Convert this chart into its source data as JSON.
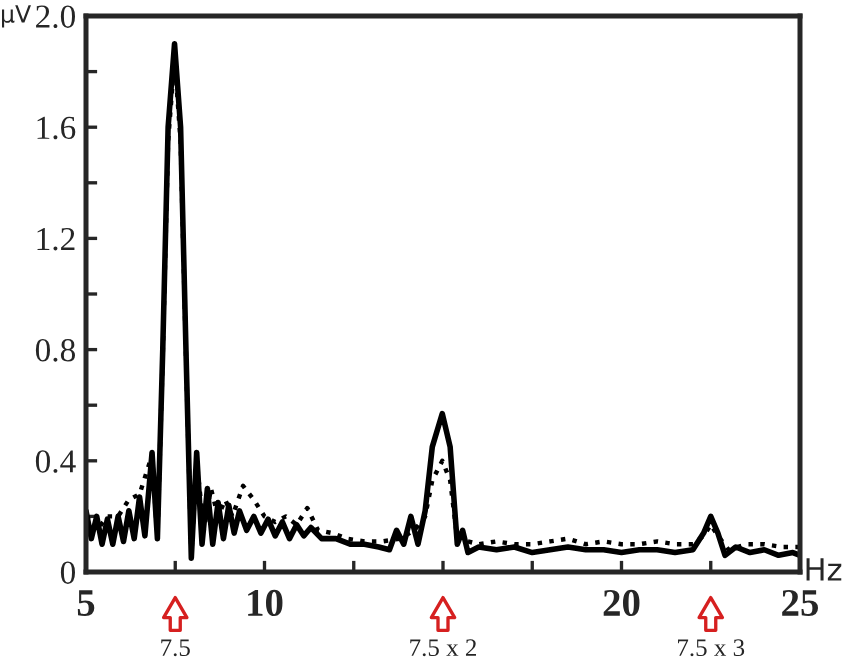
{
  "chart_data": {
    "type": "line",
    "ylabel": "μV",
    "xlabel": "Hz",
    "xlim": [
      5,
      25
    ],
    "xticks": [
      5,
      {
        "value": 7.5,
        "label": null
      },
      10,
      {
        "value": 12.5,
        "label": null
      },
      {
        "value": 15,
        "label": null
      },
      {
        "value": 17.5,
        "label": null
      },
      20,
      {
        "value": 22.5,
        "label": null
      },
      25
    ],
    "ylim": [
      0,
      2.0
    ],
    "yticks": [
      0,
      {
        "value": 0.2,
        "label": null
      },
      0.4,
      {
        "value": 0.6,
        "label": null
      },
      0.8,
      {
        "value": 1.0,
        "label": null
      },
      1.2,
      {
        "value": 1.4,
        "label": null
      },
      1.6,
      {
        "value": 1.8,
        "label": null
      },
      {
        "value": 2.0,
        "label": "2.0"
      }
    ],
    "grid": false,
    "legend": false,
    "marker": "none",
    "series": [
      {
        "color": "#000000",
        "line_style": "solid",
        "x": [
          5.0,
          5.15,
          5.3,
          5.45,
          5.6,
          5.75,
          5.9,
          6.05,
          6.2,
          6.35,
          6.5,
          6.65,
          6.85,
          7.0,
          7.15,
          7.3,
          7.48,
          7.65,
          7.8,
          7.95,
          8.1,
          8.25,
          8.4,
          8.55,
          8.7,
          8.85,
          9.0,
          9.15,
          9.3,
          9.5,
          9.7,
          9.9,
          10.1,
          10.3,
          10.5,
          10.7,
          10.9,
          11.1,
          11.3,
          11.6,
          12.0,
          12.4,
          12.8,
          13.2,
          13.5,
          13.7,
          13.9,
          14.1,
          14.3,
          14.5,
          14.7,
          14.98,
          15.2,
          15.4,
          15.55,
          15.7,
          16.0,
          16.5,
          17.0,
          17.5,
          18.0,
          18.5,
          19.0,
          19.5,
          20.0,
          20.5,
          21.0,
          21.5,
          22.0,
          22.3,
          22.5,
          22.7,
          22.9,
          23.2,
          23.6,
          24.0,
          24.4,
          24.8,
          25.0
        ],
        "values": [
          0.22,
          0.12,
          0.2,
          0.1,
          0.19,
          0.1,
          0.2,
          0.11,
          0.22,
          0.12,
          0.27,
          0.13,
          0.43,
          0.12,
          0.8,
          1.6,
          1.9,
          1.6,
          0.8,
          0.05,
          0.43,
          0.1,
          0.3,
          0.1,
          0.25,
          0.12,
          0.24,
          0.14,
          0.22,
          0.15,
          0.2,
          0.14,
          0.19,
          0.13,
          0.18,
          0.12,
          0.17,
          0.13,
          0.16,
          0.12,
          0.12,
          0.1,
          0.1,
          0.09,
          0.08,
          0.15,
          0.1,
          0.2,
          0.1,
          0.22,
          0.45,
          0.57,
          0.45,
          0.1,
          0.15,
          0.07,
          0.09,
          0.08,
          0.09,
          0.07,
          0.08,
          0.09,
          0.08,
          0.08,
          0.07,
          0.08,
          0.08,
          0.07,
          0.08,
          0.14,
          0.2,
          0.14,
          0.06,
          0.09,
          0.07,
          0.08,
          0.06,
          0.07,
          0.06
        ]
      },
      {
        "color": "#000000",
        "line_style": "dotted",
        "x": [
          5.0,
          5.3,
          5.6,
          5.9,
          6.2,
          6.5,
          6.85,
          7.0,
          7.15,
          7.3,
          7.48,
          7.65,
          7.8,
          7.95,
          8.1,
          8.3,
          8.5,
          8.7,
          8.9,
          9.1,
          9.4,
          9.7,
          10.0,
          10.3,
          10.6,
          10.9,
          11.2,
          11.5,
          11.9,
          12.3,
          12.8,
          13.3,
          13.8,
          14.2,
          14.5,
          14.7,
          14.98,
          15.2,
          15.4,
          16.0,
          16.5,
          17.0,
          17.5,
          18.0,
          18.5,
          19.0,
          19.5,
          20.0,
          20.5,
          21.0,
          21.5,
          22.0,
          22.3,
          22.5,
          22.7,
          23.0,
          23.5,
          24.0,
          24.5,
          25.0
        ],
        "values": [
          0.2,
          0.15,
          0.2,
          0.2,
          0.26,
          0.28,
          0.42,
          0.12,
          0.78,
          1.55,
          1.85,
          1.55,
          0.78,
          0.06,
          0.4,
          0.15,
          0.3,
          0.2,
          0.26,
          0.2,
          0.31,
          0.26,
          0.2,
          0.18,
          0.2,
          0.17,
          0.23,
          0.15,
          0.14,
          0.12,
          0.11,
          0.11,
          0.12,
          0.15,
          0.2,
          0.33,
          0.4,
          0.33,
          0.12,
          0.1,
          0.11,
          0.1,
          0.1,
          0.11,
          0.12,
          0.1,
          0.11,
          0.1,
          0.1,
          0.11,
          0.1,
          0.1,
          0.13,
          0.17,
          0.13,
          0.08,
          0.1,
          0.1,
          0.09,
          0.09
        ]
      }
    ],
    "annotations": [
      "7.5",
      "7.5 x 2",
      "7.5 x 3"
    ]
  }
}
